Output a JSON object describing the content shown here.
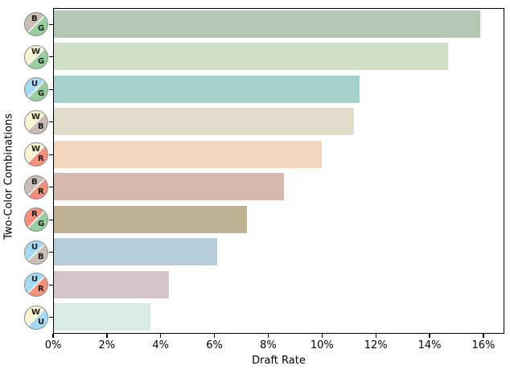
{
  "chart_data": {
    "type": "bar",
    "orientation": "horizontal",
    "title": "",
    "xlabel": "Draft Rate",
    "ylabel": "Two-Color Combinations",
    "categories": [
      "BG",
      "WG",
      "UG",
      "WB",
      "WR",
      "BR",
      "RG",
      "UB",
      "UR",
      "WU"
    ],
    "values": [
      15.9,
      14.7,
      11.4,
      11.2,
      10.0,
      8.6,
      7.2,
      6.1,
      4.3,
      3.6
    ],
    "values_unit": "percent",
    "bar_colors": [
      "#b4c7b3",
      "#cfe0c5",
      "#a5d1cc",
      "#e0dbca",
      "#f3d5bc",
      "#d5b7ac",
      "#bfb293",
      "#b4cdd8",
      "#d5c5c9",
      "#d9ebe2"
    ],
    "icon_pairs": [
      [
        "B",
        "G"
      ],
      [
        "W",
        "G"
      ],
      [
        "U",
        "G"
      ],
      [
        "W",
        "B"
      ],
      [
        "W",
        "R"
      ],
      [
        "B",
        "R"
      ],
      [
        "R",
        "G"
      ],
      [
        "U",
        "B"
      ],
      [
        "U",
        "R"
      ],
      [
        "W",
        "U"
      ]
    ],
    "mana_colors": {
      "W": "#f8f4d0",
      "U": "#a6d9f2",
      "B": "#c9beb6",
      "R": "#f2907c",
      "G": "#97cf9f"
    },
    "icon_divider_color": "#f2f2f2",
    "x_tick_values": [
      0,
      2,
      4,
      6,
      8,
      10,
      12,
      14,
      16
    ],
    "x_tick_labels": [
      "0%",
      "2%",
      "4%",
      "6%",
      "8%",
      "10%",
      "12%",
      "14%",
      "16%"
    ],
    "xlim": [
      0,
      16.78
    ],
    "grid": false,
    "legend": "none",
    "frame": "full-box"
  }
}
